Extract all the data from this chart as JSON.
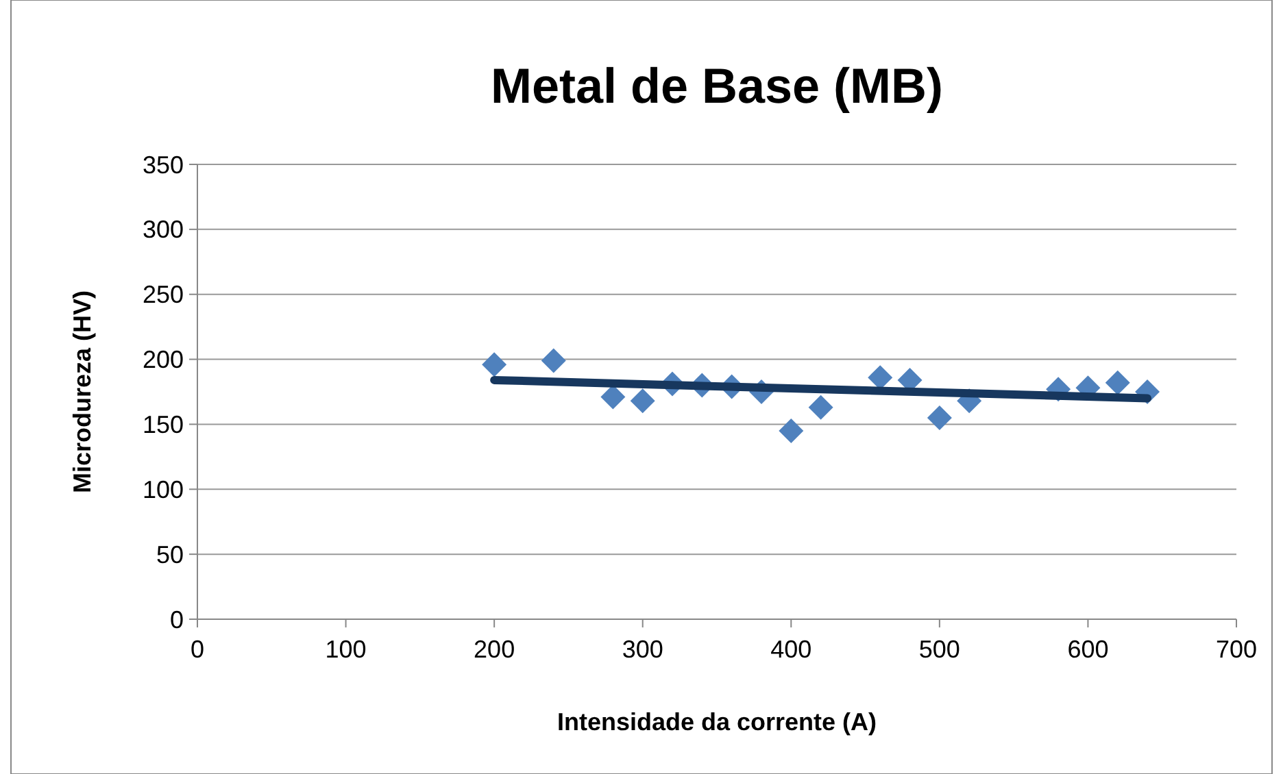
{
  "chart_data": {
    "type": "scatter",
    "title": "Metal de Base (MB)",
    "xlabel": "Intensidade da corrente (A)",
    "ylabel": "Microdureza  (HV)",
    "xlim": [
      0,
      700
    ],
    "xticks": [
      0,
      100,
      200,
      300,
      400,
      500,
      600,
      700
    ],
    "ylim": [
      0,
      350
    ],
    "yticks": [
      0,
      50,
      100,
      150,
      200,
      250,
      300,
      350
    ],
    "grid": "y",
    "series": [
      {
        "color": "#4f81bd",
        "marker": "diamond",
        "x": [
          200,
          240,
          280,
          300,
          320,
          340,
          360,
          380,
          400,
          420,
          460,
          480,
          500,
          520,
          580,
          600,
          620,
          640
        ],
        "values": [
          196,
          199,
          171,
          168,
          181,
          180,
          179,
          175,
          145,
          163,
          186,
          184,
          155,
          168,
          177,
          178,
          182,
          175
        ]
      },
      {
        "type": "line",
        "color": "#17375e",
        "marker": "none",
        "line_style": "solid",
        "x": [
          200,
          640
        ],
        "values": [
          184,
          170
        ]
      }
    ]
  }
}
